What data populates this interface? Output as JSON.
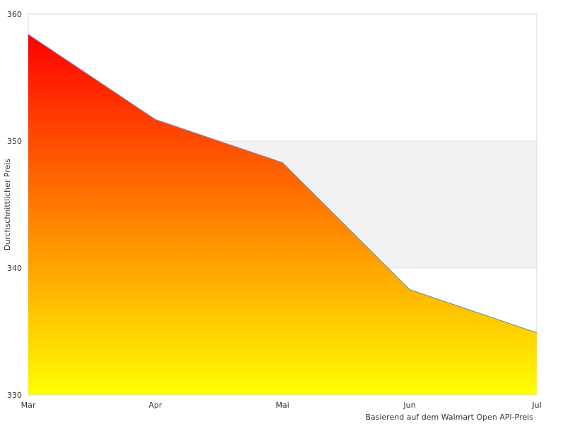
{
  "chart_data": {
    "type": "area",
    "categories": [
      "Mar",
      "Apr",
      "Mai",
      "Jun",
      "Jul"
    ],
    "values": [
      358.4,
      351.7,
      348.3,
      338.3,
      334.9
    ],
    "ylabel": "Durchschnittlicher Preis",
    "xlabel": "",
    "ylim": [
      330,
      360
    ],
    "yticks": [
      330,
      340,
      350,
      360
    ],
    "grid": "alternating bands",
    "legend": "none",
    "credit": "Basierend auf dem Walmart Open API-Preis",
    "colors": {
      "fill_top": "#ff0000",
      "fill_bottom": "#ffff00",
      "line": "#5b9bd5",
      "band": "#f2f2f2",
      "border": "#d9d9d9"
    }
  }
}
